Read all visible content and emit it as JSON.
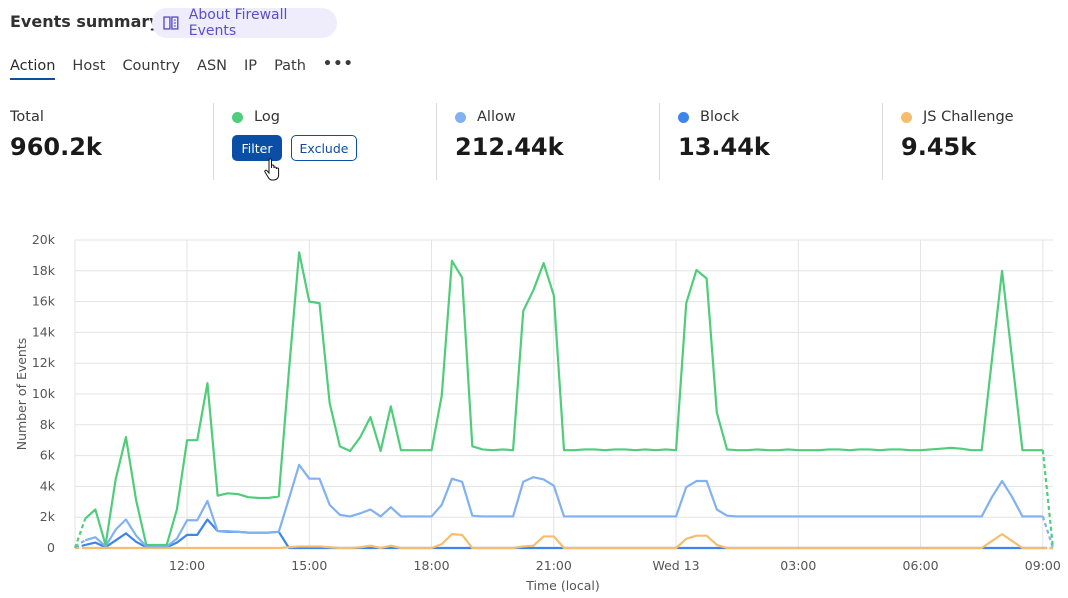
{
  "header": {
    "title": "Events summary",
    "about_label": "About Firewall Events",
    "about_icon": "book-icon"
  },
  "tabs": [
    {
      "label": "Action",
      "active": true
    },
    {
      "label": "Host"
    },
    {
      "label": "Country"
    },
    {
      "label": "ASN"
    },
    {
      "label": "IP"
    },
    {
      "label": "Path"
    },
    {
      "label": "•••"
    }
  ],
  "stats": {
    "total": {
      "label": "Total",
      "value": "960.2k"
    },
    "log": {
      "label": "Log",
      "color": "#4fcd7a",
      "filter_label": "Filter",
      "exclude_label": "Exclude"
    },
    "allow": {
      "label": "Allow",
      "value": "212.44k",
      "color": "#82b1f2"
    },
    "block": {
      "label": "Block",
      "value": "13.44k",
      "color": "#3e84ee"
    },
    "js": {
      "label": "JS Challenge",
      "value": "9.45k",
      "color": "#f6bd6c"
    }
  },
  "chart_data": {
    "type": "line",
    "xlabel": "Time (local)",
    "ylabel": "Number of Events",
    "ylim": [
      0,
      20000
    ],
    "y_ticks": [
      "0",
      "2k",
      "4k",
      "6k",
      "8k",
      "10k",
      "12k",
      "14k",
      "16k",
      "18k",
      "20k"
    ],
    "x_ticks": [
      {
        "label": "12:00",
        "at": "Tue 12:00"
      },
      {
        "label": "15:00",
        "at": "Tue 15:00"
      },
      {
        "label": "18:00",
        "at": "Tue 18:00"
      },
      {
        "label": "21:00",
        "at": "Tue 21:00"
      },
      {
        "label": "Wed 13",
        "at": "Wed 00:00"
      },
      {
        "label": "03:00",
        "at": "Wed 03:00"
      },
      {
        "label": "06:00",
        "at": "Wed 06:00"
      },
      {
        "label": "09:00",
        "at": "Wed 09:00"
      }
    ],
    "grid": true,
    "x": [
      "Tue 09:15",
      "Tue 09:30",
      "Tue 09:45",
      "Tue 10:00",
      "Tue 10:15",
      "Tue 10:30",
      "Tue 10:45",
      "Tue 11:00",
      "Tue 11:15",
      "Tue 11:30",
      "Tue 11:45",
      "Tue 12:00",
      "Tue 12:15",
      "Tue 12:30",
      "Tue 12:45",
      "Tue 13:00",
      "Tue 13:15",
      "Tue 13:30",
      "Tue 13:45",
      "Tue 14:00",
      "Tue 14:15",
      "Tue 14:30",
      "Tue 14:45",
      "Tue 15:00",
      "Tue 15:15",
      "Tue 15:30",
      "Tue 15:45",
      "Tue 16:00",
      "Tue 16:15",
      "Tue 16:30",
      "Tue 16:45",
      "Tue 17:00",
      "Tue 17:15",
      "Tue 17:30",
      "Tue 17:45",
      "Tue 18:00",
      "Tue 18:15",
      "Tue 18:30",
      "Tue 18:45",
      "Tue 19:00",
      "Tue 19:15",
      "Tue 19:30",
      "Tue 19:45",
      "Tue 20:00",
      "Tue 20:15",
      "Tue 20:30",
      "Tue 20:45",
      "Tue 21:00",
      "Tue 21:15",
      "Tue 21:30",
      "Tue 21:45",
      "Tue 22:00",
      "Tue 22:15",
      "Tue 22:30",
      "Tue 22:45",
      "Tue 23:00",
      "Tue 23:15",
      "Tue 23:30",
      "Tue 23:45",
      "Wed 00:00",
      "Wed 00:15",
      "Wed 00:30",
      "Wed 00:45",
      "Wed 01:00",
      "Wed 01:15",
      "Wed 01:30",
      "Wed 01:45",
      "Wed 02:00",
      "Wed 02:15",
      "Wed 02:30",
      "Wed 02:45",
      "Wed 03:00",
      "Wed 03:15",
      "Wed 03:30",
      "Wed 03:45",
      "Wed 04:00",
      "Wed 04:15",
      "Wed 04:30",
      "Wed 04:45",
      "Wed 05:00",
      "Wed 05:15",
      "Wed 05:30",
      "Wed 05:45",
      "Wed 06:00",
      "Wed 06:15",
      "Wed 06:30",
      "Wed 06:45",
      "Wed 07:00",
      "Wed 07:15",
      "Wed 07:30",
      "Wed 07:45",
      "Wed 08:00",
      "Wed 08:15",
      "Wed 08:30",
      "Wed 08:45",
      "Wed 09:00",
      "Wed 09:15"
    ],
    "series": [
      {
        "name": "Log",
        "color": "#4fcd7a",
        "values": [
          0,
          1900,
          2500,
          200,
          4500,
          7200,
          3100,
          200,
          200,
          200,
          2500,
          7000,
          7000,
          10700,
          3400,
          3550,
          3500,
          3300,
          3250,
          3250,
          3350,
          11500,
          19200,
          16000,
          15900,
          9400,
          6600,
          6300,
          7200,
          8500,
          6300,
          9200,
          6350,
          6350,
          6350,
          6350,
          9900,
          18650,
          17550,
          6600,
          6400,
          6350,
          6400,
          6350,
          15400,
          16750,
          18500,
          16400,
          6350,
          6350,
          6400,
          6400,
          6350,
          6400,
          6400,
          6350,
          6400,
          6350,
          6400,
          6350,
          15900,
          18050,
          17500,
          8800,
          6400,
          6350,
          6350,
          6400,
          6350,
          6350,
          6400,
          6350,
          6350,
          6350,
          6400,
          6400,
          6350,
          6400,
          6400,
          6350,
          6400,
          6400,
          6350,
          6350,
          6400,
          6450,
          6500,
          6450,
          6350,
          6350,
          12200,
          18000,
          12200,
          6350,
          6350,
          6350,
          0
        ]
      },
      {
        "name": "Allow",
        "color": "#82b1f2",
        "values": [
          100,
          500,
          700,
          100,
          1200,
          1850,
          800,
          100,
          100,
          100,
          600,
          1800,
          1800,
          3050,
          1100,
          1100,
          1050,
          1000,
          1000,
          1000,
          1050,
          3200,
          5400,
          4500,
          4500,
          2800,
          2150,
          2050,
          2250,
          2500,
          2050,
          2650,
          2050,
          2050,
          2050,
          2050,
          2800,
          4500,
          4300,
          2100,
          2050,
          2050,
          2050,
          2050,
          4300,
          4600,
          4450,
          4050,
          2050,
          2050,
          2050,
          2050,
          2050,
          2050,
          2050,
          2050,
          2050,
          2050,
          2050,
          2050,
          3950,
          4350,
          4350,
          2500,
          2100,
          2050,
          2050,
          2050,
          2050,
          2050,
          2050,
          2050,
          2050,
          2050,
          2050,
          2050,
          2050,
          2050,
          2050,
          2050,
          2050,
          2050,
          2050,
          2050,
          2050,
          2050,
          2050,
          2050,
          2050,
          2050,
          3300,
          4350,
          3300,
          2050,
          2050,
          2050,
          0
        ]
      },
      {
        "name": "Block",
        "color": "#3e84ee",
        "values": [
          0,
          200,
          350,
          50,
          500,
          950,
          400,
          50,
          50,
          50,
          350,
          850,
          850,
          1850,
          1100,
          1050,
          1050,
          1000,
          1000,
          1000,
          1050,
          0,
          0,
          0,
          0,
          0,
          0,
          0,
          0,
          0,
          0,
          0,
          0,
          0,
          0,
          0,
          0,
          0,
          0,
          0,
          0,
          0,
          0,
          0,
          0,
          0,
          0,
          0,
          0,
          0,
          0,
          0,
          0,
          0,
          0,
          0,
          0,
          0,
          0,
          0,
          0,
          0,
          0,
          0,
          0,
          0,
          0,
          0,
          0,
          0,
          0,
          0,
          0,
          0,
          0,
          0,
          0,
          0,
          0,
          0,
          0,
          0,
          0,
          0,
          0,
          0,
          0,
          0,
          0,
          0,
          0,
          0,
          0,
          0,
          0,
          0,
          0
        ]
      },
      {
        "name": "JS Challenge",
        "color": "#f6bd6c",
        "values": [
          0,
          0,
          0,
          0,
          0,
          0,
          0,
          0,
          0,
          0,
          0,
          0,
          0,
          0,
          0,
          0,
          0,
          0,
          0,
          0,
          0,
          50,
          100,
          100,
          100,
          50,
          0,
          0,
          50,
          150,
          0,
          150,
          0,
          0,
          0,
          0,
          250,
          900,
          850,
          0,
          0,
          0,
          0,
          0,
          100,
          150,
          750,
          750,
          0,
          0,
          0,
          0,
          0,
          0,
          0,
          0,
          0,
          0,
          0,
          0,
          600,
          800,
          800,
          200,
          0,
          0,
          0,
          0,
          0,
          0,
          0,
          0,
          0,
          0,
          0,
          0,
          0,
          0,
          0,
          0,
          0,
          0,
          0,
          0,
          0,
          0,
          0,
          0,
          0,
          0,
          450,
          900,
          450,
          0,
          0,
          0,
          0
        ]
      }
    ]
  }
}
